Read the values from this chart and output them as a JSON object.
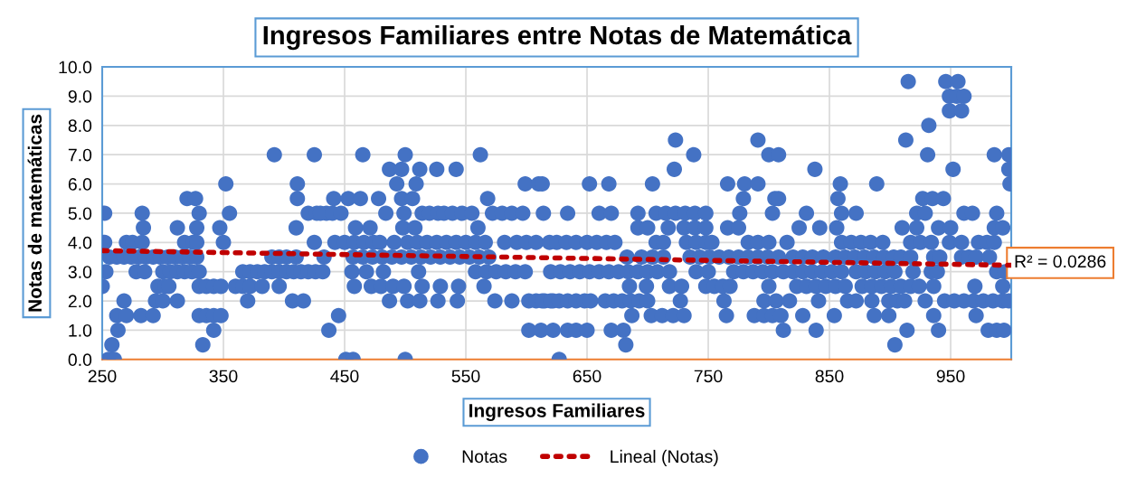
{
  "chart_data": {
    "type": "scatter",
    "title": "Ingresos Familiares entre Notas de Matemática",
    "xlabel": "Ingresos Familiares",
    "ylabel": "Notas de matemáticas",
    "xlim": [
      250,
      1000
    ],
    "xticks": [
      250,
      350,
      450,
      550,
      650,
      750,
      850,
      950
    ],
    "ylim": [
      0,
      10
    ],
    "yticks": [
      {
        "value": 0,
        "label": "0.0"
      },
      {
        "value": 1,
        "label": "1.0"
      },
      {
        "value": 2,
        "label": "2.0"
      },
      {
        "value": 3,
        "label": "3.0"
      },
      {
        "value": 4,
        "label": "4.0"
      },
      {
        "value": 5,
        "label": "5.0"
      },
      {
        "value": 6,
        "label": "6.0"
      },
      {
        "value": 7,
        "label": "7.0"
      },
      {
        "value": 8,
        "label": "8.0"
      },
      {
        "value": 9,
        "label": "9.0"
      },
      {
        "value": 10,
        "label": "10.0"
      }
    ],
    "grid": true,
    "legend": "bottom",
    "marker": "circle",
    "annotations": [
      "R² = 0.0286"
    ],
    "series": [
      {
        "name": "Notas",
        "color": "#4472c4",
        "x": [
          252,
          283,
          330,
          355,
          420,
          427,
          435,
          284,
          312,
          328,
          347,
          410,
          252,
          270,
          275,
          283,
          318,
          325,
          328,
          350,
          425,
          256,
          262,
          268,
          274,
          280,
          286,
          292,
          298,
          304,
          310,
          316,
          322,
          328,
          390,
          396,
          402,
          410,
          433,
          253,
          278,
          285,
          300,
          306,
          312,
          318,
          324,
          330,
          366,
          372,
          378,
          384,
          390,
          396,
          402,
          408,
          414,
          420,
          426,
          432,
          250,
          296,
          302,
          305,
          330,
          336,
          342,
          348,
          360,
          366,
          372,
          382,
          396,
          268,
          294,
          300,
          312,
          370,
          407,
          416,
          262,
          270,
          282,
          292,
          330,
          336,
          342,
          348,
          263,
          342,
          258,
          333,
          255,
          260,
          352,
          411,
          320,
          327,
          411,
          392,
          425,
          465,
          500,
          562,
          487,
          497,
          512,
          526,
          542,
          493,
          509,
          599,
          610,
          441,
          453,
          463,
          478,
          497,
          506,
          568,
          430,
          440,
          447,
          484,
          499,
          514,
          520,
          527,
          532,
          539,
          547,
          555,
          572,
          580,
          588,
          597,
          614,
          459,
          471,
          498,
          508,
          560,
          442,
          450,
          458,
          466,
          474,
          479,
          491,
          502,
          510,
          518,
          526,
          534,
          542,
          550,
          558,
          566,
          582,
          592,
          600,
          608,
          619,
          457,
          465,
          473,
          481,
          489,
          497,
          505,
          513,
          521,
          529,
          537,
          545,
          553,
          561,
          569,
          456,
          468,
          482,
          511,
          558,
          567,
          575,
          583,
          591,
          599,
          620,
          458,
          472,
          480,
          490,
          499,
          514,
          529,
          544,
          565,
          487,
          502,
          512,
          527,
          543,
          574,
          588,
          602,
          608,
          615,
          622,
          445,
          437,
          602,
          612,
          622,
          451,
          457,
          500,
          723,
          791,
          738,
          800,
          808,
          722,
          613,
          652,
          668,
          704,
          766,
          780,
          791,
          779,
          805,
          634,
          660,
          670,
          692,
          707,
          715,
          723,
          731,
          739,
          748,
          776,
          803,
          692,
          700,
          717,
          730,
          739,
          748,
          766,
          775,
          625,
          633,
          641,
          650,
          658,
          666,
          673,
          707,
          713,
          732,
          740,
          748,
          753,
          783,
          791,
          800,
          683,
          695,
          704,
          713,
          735,
          743,
          751,
          759,
          767,
          775,
          783,
          791,
          799,
          808,
          628,
          636,
          644,
          652,
          660,
          668,
          676,
          684,
          692,
          700,
          708,
          718,
          740,
          750,
          771,
          779,
          787,
          795,
          803,
          685,
          699,
          718,
          728,
          748,
          755,
          762,
          768,
          800,
          613,
          620,
          627,
          634,
          641,
          648,
          653,
          665,
          672,
          679,
          686,
          693,
          700,
          727,
          763,
          796,
          687,
          703,
          712,
          721,
          730,
          765,
          788,
          796,
          634,
          641,
          650,
          670,
          680,
          682,
          627,
          915,
          946,
          956,
          949,
          955,
          961,
          949,
          959,
          932,
          913,
          931,
          986,
          998,
          838,
          952,
          998,
          859,
          889,
          999,
          808,
          857,
          927,
          935,
          944,
          831,
          860,
          872,
          922,
          929,
          961,
          968,
          988,
          825,
          842,
          856,
          910,
          922,
          940,
          950,
          986,
          993,
          815,
          860,
          868,
          876,
          884,
          894,
          917,
          925,
          934,
          949,
          959,
          973,
          980,
          986,
          820,
          828,
          836,
          845,
          855,
          863,
          871,
          879,
          887,
          895,
          903,
          909,
          917,
          936,
          941,
          959,
          965,
          971,
          982,
          812,
          820,
          828,
          836,
          844,
          852,
          860,
          872,
          880,
          888,
          896,
          904,
          919,
          934,
          939,
          988,
          995,
          823,
          831,
          839,
          847,
          855,
          863,
          877,
          885,
          893,
          901,
          909,
          917,
          924,
          936,
          970,
          993,
          806,
          817,
          841,
          865,
          872,
          885,
          899,
          906,
          912,
          929,
          945,
          953,
          961,
          969,
          977,
          985,
          993,
          998,
          803,
          810,
          828,
          854,
          887,
          899,
          936,
          971,
          812,
          839,
          914,
          940,
          981,
          988,
          994,
          904
        ],
        "values": [
          5,
          5,
          5,
          5,
          5,
          5,
          5,
          4.5,
          4.5,
          4.5,
          4.5,
          4.5,
          4,
          4,
          4,
          4,
          4,
          4,
          4,
          4,
          4,
          3.5,
          3.5,
          3.5,
          3.5,
          3.5,
          3.5,
          3.5,
          3.5,
          3.5,
          3.5,
          3.5,
          3.5,
          3.5,
          3.5,
          3.5,
          3.5,
          3.5,
          3.5,
          3,
          3,
          3,
          3,
          3,
          3,
          3,
          3,
          3,
          3,
          3,
          3,
          3,
          3,
          3,
          3,
          3,
          3,
          3,
          3,
          3,
          2.5,
          2.5,
          2.5,
          2.5,
          2.5,
          2.5,
          2.5,
          2.5,
          2.5,
          2.5,
          2.5,
          2.5,
          2.5,
          2,
          2,
          2,
          2,
          2,
          2,
          2,
          1.5,
          1.5,
          1.5,
          1.5,
          1.5,
          1.5,
          1.5,
          1.5,
          1,
          1,
          0.5,
          0.5,
          0,
          0,
          6,
          6,
          5.5,
          5.5,
          5.5,
          7,
          7,
          7,
          7,
          7,
          6.5,
          6.5,
          6.5,
          6.5,
          6.5,
          6,
          6,
          6,
          6,
          5.5,
          5.5,
          5.5,
          5.5,
          5.5,
          5.5,
          5.5,
          5,
          5,
          5,
          5,
          5,
          5,
          5,
          5,
          5,
          5,
          5,
          5,
          5,
          5,
          5,
          5,
          5,
          4.5,
          4.5,
          4.5,
          4.5,
          4.5,
          4,
          4,
          4,
          4,
          4,
          4,
          4,
          4,
          4,
          4,
          4,
          4,
          4,
          4,
          4,
          4,
          4,
          4,
          4,
          4,
          4,
          3.5,
          3.5,
          3.5,
          3.5,
          3.5,
          3.5,
          3.5,
          3.5,
          3.5,
          3.5,
          3.5,
          3.5,
          3.5,
          3.5,
          3.5,
          3,
          3,
          3,
          3,
          3,
          3,
          3,
          3,
          3,
          3,
          3,
          2.5,
          2.5,
          2.5,
          2.5,
          2.5,
          2.5,
          2.5,
          2.5,
          2.5,
          2,
          2,
          2,
          2,
          2,
          2,
          2,
          2,
          2,
          2,
          2,
          1.5,
          1,
          1,
          1,
          1,
          0,
          0,
          0,
          7.5,
          7.5,
          7,
          7,
          7,
          6.5,
          6,
          6,
          6,
          6,
          6,
          6,
          6,
          5.5,
          5.5,
          5,
          5,
          5,
          5,
          5,
          5,
          5,
          5,
          5,
          5,
          5,
          5,
          4.5,
          4.5,
          4.5,
          4.5,
          4.5,
          4.5,
          4.5,
          4.5,
          4,
          4,
          4,
          4,
          4,
          4,
          4,
          4,
          4,
          4,
          4,
          4,
          4,
          4,
          4,
          4,
          3.5,
          3.5,
          3.5,
          3.5,
          3.5,
          3.5,
          3.5,
          3.5,
          3.5,
          3.5,
          3.5,
          3.5,
          3.5,
          3.5,
          3,
          3,
          3,
          3,
          3,
          3,
          3,
          3,
          3,
          3,
          3,
          3,
          3,
          3,
          3,
          3,
          3,
          3,
          3,
          2.5,
          2.5,
          2.5,
          2.5,
          2.5,
          2.5,
          2.5,
          2.5,
          2.5,
          2,
          2,
          2,
          2,
          2,
          2,
          2,
          2,
          2,
          2,
          2,
          2,
          2,
          2,
          2,
          2,
          1.5,
          1.5,
          1.5,
          1.5,
          1.5,
          1.5,
          1.5,
          1.5,
          1,
          1,
          1,
          1,
          1,
          0.5,
          0,
          9.5,
          9.5,
          9.5,
          9,
          9,
          9,
          8.5,
          8.5,
          8,
          7.5,
          7,
          7,
          7,
          6.5,
          6.5,
          6.5,
          6,
          6,
          6,
          5.5,
          5.5,
          5.5,
          5.5,
          5.5,
          5,
          5,
          5,
          5,
          5,
          5,
          5,
          5,
          4.5,
          4.5,
          4.5,
          4.5,
          4.5,
          4.5,
          4.5,
          4.5,
          4.5,
          4,
          4,
          4,
          4,
          4,
          4,
          4,
          4,
          4,
          4,
          4,
          4,
          4,
          4,
          3.5,
          3.5,
          3.5,
          3.5,
          3.5,
          3.5,
          3.5,
          3.5,
          3.5,
          3.5,
          3.5,
          3.5,
          3.5,
          3.5,
          3.5,
          3.5,
          3.5,
          3.5,
          3.5,
          3,
          3,
          3,
          3,
          3,
          3,
          3,
          3,
          3,
          3,
          3,
          3,
          3,
          3,
          3,
          3,
          3,
          2.5,
          2.5,
          2.5,
          2.5,
          2.5,
          2.5,
          2.5,
          2.5,
          2.5,
          2.5,
          2.5,
          2.5,
          2.5,
          2.5,
          2.5,
          2.5,
          2,
          2,
          2,
          2,
          2,
          2,
          2,
          2,
          2,
          2,
          2,
          2,
          2,
          2,
          2,
          2,
          2,
          2,
          1.5,
          1.5,
          1.5,
          1.5,
          1.5,
          1.5,
          1.5,
          1.5,
          1,
          1,
          1,
          1,
          1,
          1,
          1,
          0.5
        ]
      },
      {
        "name": "Lineal (Notas)",
        "type": "line",
        "color": "#c00000",
        "line_style": "dotted",
        "marker": "none",
        "x": [
          250,
          1000
        ],
        "values": [
          3.72,
          3.22
        ]
      }
    ]
  }
}
